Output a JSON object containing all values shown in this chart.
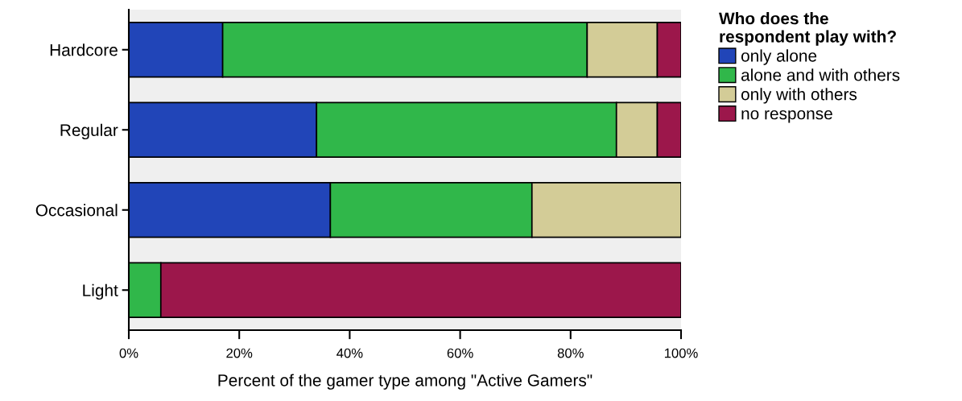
{
  "chart_data": {
    "type": "bar",
    "orientation": "horizontal",
    "stacked": true,
    "xlabel": "Percent of the gamer type among \"Active Gamers\"",
    "legend_title": "Who does the\nrespondent play with?",
    "legend": "top right",
    "categories": [
      "Hardcore",
      "Regular",
      "Occasional",
      "Light"
    ],
    "xlim": [
      0,
      100
    ],
    "xticks": [
      {
        "value": 0,
        "label": "0%"
      },
      {
        "value": 20,
        "label": "20%"
      },
      {
        "value": 40,
        "label": "40%"
      },
      {
        "value": 60,
        "label": "60%"
      },
      {
        "value": 80,
        "label": "80%"
      },
      {
        "value": 100,
        "label": "100%"
      }
    ],
    "grid": false,
    "series": [
      {
        "name": "only alone",
        "color": "#2145b8",
        "values": [
          17.0,
          34.0,
          36.5,
          null
        ]
      },
      {
        "name": "alone and with others",
        "color": "#30b74a",
        "values": [
          66.0,
          54.3,
          36.5,
          5.8
        ]
      },
      {
        "name": "only with others",
        "color": "#d3cc97",
        "values": [
          12.7,
          7.4,
          27.0,
          null
        ]
      },
      {
        "name": "no response",
        "color": "#9c174b",
        "values": [
          4.3,
          4.3,
          null,
          94.2
        ]
      }
    ]
  }
}
